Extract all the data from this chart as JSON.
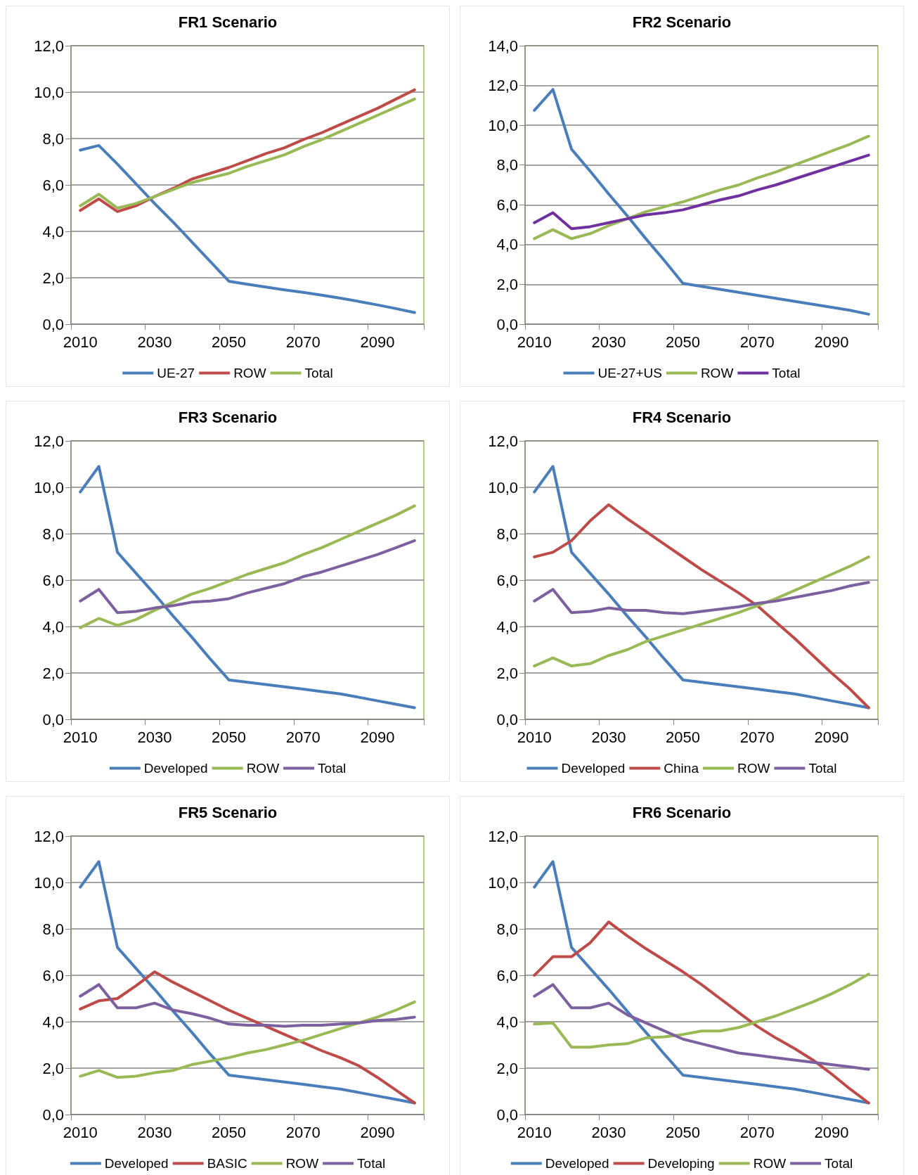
{
  "chart_data": [
    {
      "type": "line",
      "title": "FR1 Scenario",
      "categories": [
        "2010",
        null,
        null,
        null,
        "2030",
        null,
        null,
        null,
        "2050",
        null,
        null,
        null,
        "2070",
        null,
        null,
        null,
        "2090",
        null,
        null
      ],
      "ylim": [
        0,
        12
      ],
      "yticks": [
        {
          "value": 0,
          "label": "0,0"
        },
        {
          "value": 2,
          "label": "2,0"
        },
        {
          "value": 4,
          "label": "4,0"
        },
        {
          "value": 6,
          "label": "6,0"
        },
        {
          "value": 8,
          "label": "8,0"
        },
        {
          "value": 10,
          "label": "10,0"
        },
        {
          "value": 12,
          "label": "12,0"
        }
      ],
      "grid": "y",
      "legend": "bottom",
      "series": [
        {
          "name": "UE-27",
          "color": "#4a7ebb",
          "values": [
            7.5,
            7.7,
            6.9,
            6.05,
            5.2,
            4.4,
            3.55,
            2.7,
            1.85,
            1.72,
            1.6,
            1.48,
            1.37,
            1.25,
            1.12,
            0.98,
            0.83,
            0.67,
            0.5
          ]
        },
        {
          "name": "ROW",
          "color": "#be4b48",
          "values": [
            4.9,
            5.4,
            4.85,
            5.1,
            5.5,
            5.85,
            6.25,
            6.5,
            6.75,
            7.05,
            7.35,
            7.6,
            7.95,
            8.25,
            8.6,
            8.95,
            9.3,
            9.7,
            10.1
          ]
        },
        {
          "name": "Total",
          "color": "#98b954",
          "values": [
            5.1,
            5.6,
            5.0,
            5.2,
            5.5,
            5.8,
            6.1,
            6.3,
            6.5,
            6.8,
            7.05,
            7.3,
            7.65,
            7.95,
            8.3,
            8.65,
            9.0,
            9.35,
            9.7
          ]
        }
      ]
    },
    {
      "type": "line",
      "title": "FR2 Scenario",
      "categories": [
        "2010",
        null,
        null,
        null,
        "2030",
        null,
        null,
        null,
        "2050",
        null,
        null,
        null,
        "2070",
        null,
        null,
        null,
        "2090",
        null,
        null
      ],
      "ylim": [
        0,
        14
      ],
      "yticks": [
        {
          "value": 0,
          "label": "0,0"
        },
        {
          "value": 2,
          "label": "2,0"
        },
        {
          "value": 4,
          "label": "4,0"
        },
        {
          "value": 6,
          "label": "6,0"
        },
        {
          "value": 8,
          "label": "8,0"
        },
        {
          "value": 10,
          "label": "10,0"
        },
        {
          "value": 12,
          "label": "12,0"
        },
        {
          "value": 14,
          "label": "14,0"
        }
      ],
      "grid": "y",
      "legend": "bottom",
      "series": [
        {
          "name": "UE-27+US",
          "color": "#4a7ebb",
          "values": [
            10.75,
            11.8,
            8.8,
            7.7,
            6.55,
            5.45,
            4.3,
            3.2,
            2.05,
            1.9,
            1.75,
            1.6,
            1.45,
            1.3,
            1.15,
            1.0,
            0.85,
            0.7,
            0.5
          ]
        },
        {
          "name": "ROW",
          "color": "#98b954",
          "values": [
            4.3,
            4.75,
            4.3,
            4.55,
            4.95,
            5.3,
            5.65,
            5.9,
            6.15,
            6.45,
            6.75,
            7.0,
            7.35,
            7.65,
            8.0,
            8.35,
            8.7,
            9.05,
            9.45
          ]
        },
        {
          "name": "Total",
          "color": "#7030a0",
          "values": [
            5.1,
            5.6,
            4.8,
            4.9,
            5.1,
            5.3,
            5.5,
            5.6,
            5.75,
            6.0,
            6.25,
            6.45,
            6.75,
            7.0,
            7.3,
            7.6,
            7.9,
            8.2,
            8.5
          ]
        }
      ]
    },
    {
      "type": "line",
      "title": "FR3 Scenario",
      "categories": [
        "2010",
        null,
        null,
        null,
        "2030",
        null,
        null,
        null,
        "2050",
        null,
        null,
        null,
        "2070",
        null,
        null,
        null,
        "2090",
        null,
        null
      ],
      "ylim": [
        0,
        12
      ],
      "yticks": [
        {
          "value": 0,
          "label": "0,0"
        },
        {
          "value": 2,
          "label": "2,0"
        },
        {
          "value": 4,
          "label": "4,0"
        },
        {
          "value": 6,
          "label": "6,0"
        },
        {
          "value": 8,
          "label": "8,0"
        },
        {
          "value": 10,
          "label": "10,0"
        },
        {
          "value": 12,
          "label": "12,0"
        }
      ],
      "grid": "y",
      "legend": "bottom",
      "series": [
        {
          "name": "Developed",
          "color": "#4a7ebb",
          "values": [
            9.8,
            10.9,
            7.2,
            6.3,
            5.4,
            4.45,
            3.55,
            2.6,
            1.7,
            1.6,
            1.5,
            1.4,
            1.3,
            1.2,
            1.1,
            0.95,
            0.8,
            0.65,
            0.5
          ]
        },
        {
          "name": "ROW",
          "color": "#98b954",
          "values": [
            3.95,
            4.35,
            4.05,
            4.3,
            4.7,
            5.05,
            5.4,
            5.65,
            5.95,
            6.25,
            6.5,
            6.75,
            7.1,
            7.4,
            7.75,
            8.1,
            8.45,
            8.8,
            9.2
          ]
        },
        {
          "name": "Total",
          "color": "#7d60a0",
          "values": [
            5.1,
            5.6,
            4.6,
            4.65,
            4.8,
            4.9,
            5.05,
            5.1,
            5.2,
            5.45,
            5.65,
            5.85,
            6.15,
            6.35,
            6.6,
            6.85,
            7.1,
            7.4,
            7.7
          ]
        }
      ]
    },
    {
      "type": "line",
      "title": "FR4 Scenario",
      "categories": [
        "2010",
        null,
        null,
        null,
        "2030",
        null,
        null,
        null,
        "2050",
        null,
        null,
        null,
        "2070",
        null,
        null,
        null,
        "2090",
        null,
        null
      ],
      "ylim": [
        0,
        12
      ],
      "yticks": [
        {
          "value": 0,
          "label": "0,0"
        },
        {
          "value": 2,
          "label": "2,0"
        },
        {
          "value": 4,
          "label": "4,0"
        },
        {
          "value": 6,
          "label": "6,0"
        },
        {
          "value": 8,
          "label": "8,0"
        },
        {
          "value": 10,
          "label": "10,0"
        },
        {
          "value": 12,
          "label": "12,0"
        }
      ],
      "grid": "y",
      "legend": "bottom",
      "series": [
        {
          "name": "Developed",
          "color": "#4a7ebb",
          "values": [
            9.8,
            10.9,
            7.2,
            6.3,
            5.4,
            4.45,
            3.55,
            2.6,
            1.7,
            1.6,
            1.5,
            1.4,
            1.3,
            1.2,
            1.1,
            0.95,
            0.8,
            0.65,
            0.5
          ]
        },
        {
          "name": "China",
          "color": "#be4b48",
          "values": [
            7.0,
            7.2,
            7.7,
            8.55,
            9.25,
            8.65,
            8.1,
            7.55,
            7.0,
            6.45,
            5.95,
            5.45,
            4.9,
            4.2,
            3.5,
            2.75,
            2.0,
            1.3,
            0.5
          ]
        },
        {
          "name": "ROW",
          "color": "#98b954",
          "values": [
            2.3,
            2.65,
            2.3,
            2.4,
            2.75,
            3.0,
            3.35,
            3.6,
            3.85,
            4.1,
            4.35,
            4.6,
            4.9,
            5.2,
            5.55,
            5.9,
            6.25,
            6.6,
            7.0
          ]
        },
        {
          "name": "Total",
          "color": "#7d60a0",
          "values": [
            5.1,
            5.6,
            4.6,
            4.65,
            4.8,
            4.7,
            4.7,
            4.6,
            4.55,
            4.65,
            4.75,
            4.85,
            5.0,
            5.1,
            5.25,
            5.4,
            5.55,
            5.75,
            5.9
          ]
        }
      ]
    },
    {
      "type": "line",
      "title": "FR5 Scenario",
      "categories": [
        "2010",
        null,
        null,
        null,
        "2030",
        null,
        null,
        null,
        "2050",
        null,
        null,
        null,
        "2070",
        null,
        null,
        null,
        "2090",
        null,
        null
      ],
      "ylim": [
        0,
        12
      ],
      "yticks": [
        {
          "value": 0,
          "label": "0,0"
        },
        {
          "value": 2,
          "label": "2,0"
        },
        {
          "value": 4,
          "label": "4,0"
        },
        {
          "value": 6,
          "label": "6,0"
        },
        {
          "value": 8,
          "label": "8,0"
        },
        {
          "value": 10,
          "label": "10,0"
        },
        {
          "value": 12,
          "label": "12,0"
        }
      ],
      "grid": "y",
      "legend": "bottom",
      "series": [
        {
          "name": "Developed",
          "color": "#4a7ebb",
          "values": [
            9.8,
            10.9,
            7.2,
            6.3,
            5.4,
            4.45,
            3.55,
            2.6,
            1.7,
            1.6,
            1.5,
            1.4,
            1.3,
            1.2,
            1.1,
            0.95,
            0.8,
            0.65,
            0.5
          ]
        },
        {
          "name": "BASIC",
          "color": "#be4b48",
          "values": [
            4.55,
            4.9,
            5.0,
            5.55,
            6.15,
            5.7,
            5.3,
            4.9,
            4.5,
            4.15,
            3.8,
            3.45,
            3.1,
            2.75,
            2.45,
            2.1,
            1.6,
            1.05,
            0.5
          ]
        },
        {
          "name": "ROW",
          "color": "#98b954",
          "values": [
            1.65,
            1.9,
            1.6,
            1.65,
            1.8,
            1.9,
            2.15,
            2.3,
            2.45,
            2.65,
            2.8,
            3.0,
            3.2,
            3.45,
            3.7,
            3.95,
            4.2,
            4.5,
            4.85
          ]
        },
        {
          "name": "Total",
          "color": "#7d60a0",
          "values": [
            5.1,
            5.6,
            4.6,
            4.6,
            4.8,
            4.5,
            4.35,
            4.15,
            3.9,
            3.85,
            3.85,
            3.8,
            3.85,
            3.85,
            3.9,
            3.95,
            4.05,
            4.1,
            4.2
          ]
        }
      ]
    },
    {
      "type": "line",
      "title": "FR6 Scenario",
      "categories": [
        "2010",
        null,
        null,
        null,
        "2030",
        null,
        null,
        null,
        "2050",
        null,
        null,
        null,
        "2070",
        null,
        null,
        null,
        "2090",
        null,
        null
      ],
      "ylim": [
        0,
        12
      ],
      "yticks": [
        {
          "value": 0,
          "label": "0,0"
        },
        {
          "value": 2,
          "label": "2,0"
        },
        {
          "value": 4,
          "label": "4,0"
        },
        {
          "value": 6,
          "label": "6,0"
        },
        {
          "value": 8,
          "label": "8,0"
        },
        {
          "value": 10,
          "label": "10,0"
        },
        {
          "value": 12,
          "label": "12,0"
        }
      ],
      "grid": "y",
      "legend": "bottom",
      "series": [
        {
          "name": "Developed",
          "color": "#4a7ebb",
          "values": [
            9.8,
            10.9,
            7.2,
            6.3,
            5.4,
            4.45,
            3.55,
            2.6,
            1.7,
            1.6,
            1.5,
            1.4,
            1.3,
            1.2,
            1.1,
            0.95,
            0.8,
            0.65,
            0.5
          ]
        },
        {
          "name": "Developing",
          "color": "#be4b48",
          "values": [
            6.0,
            6.8,
            6.8,
            7.4,
            8.3,
            7.7,
            7.15,
            6.65,
            6.15,
            5.6,
            5.0,
            4.4,
            3.8,
            3.3,
            2.85,
            2.35,
            1.75,
            1.1,
            0.5
          ]
        },
        {
          "name": "ROW",
          "color": "#98b954",
          "values": [
            3.9,
            3.95,
            2.9,
            2.9,
            3.0,
            3.05,
            3.3,
            3.35,
            3.45,
            3.6,
            3.6,
            3.75,
            4.0,
            4.25,
            4.55,
            4.85,
            5.2,
            5.6,
            6.05
          ]
        },
        {
          "name": "Total",
          "color": "#7d60a0",
          "values": [
            5.1,
            5.6,
            4.6,
            4.6,
            4.8,
            4.3,
            3.95,
            3.6,
            3.25,
            3.05,
            2.85,
            2.65,
            2.55,
            2.45,
            2.35,
            2.25,
            2.15,
            2.05,
            1.95
          ]
        }
      ]
    }
  ]
}
